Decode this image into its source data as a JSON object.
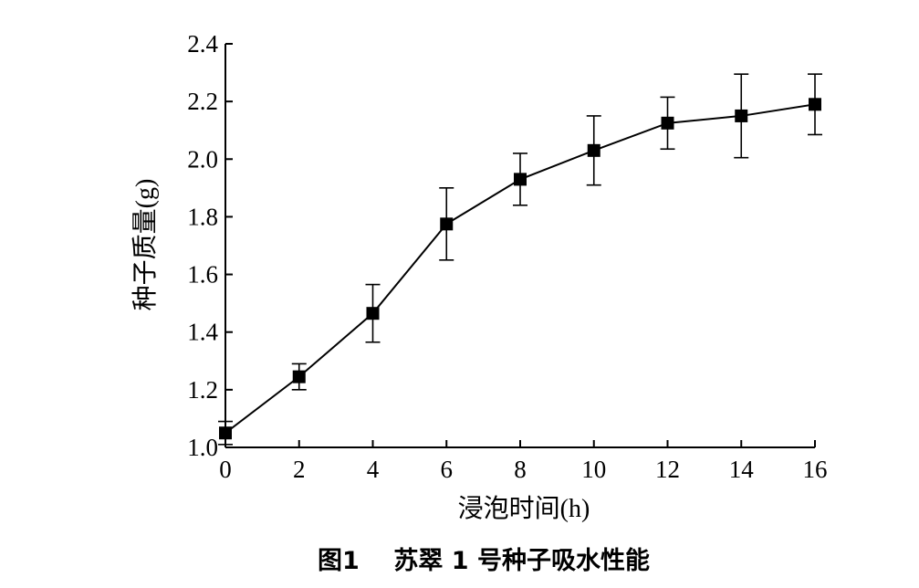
{
  "chart_data": {
    "type": "line",
    "caption": "图1    苏翠 1 号种子吸水性能",
    "xlabel": "浸泡时间(h)",
    "ylabel": "种子质量(g)",
    "xlim": [
      0,
      16
    ],
    "ylim": [
      1.0,
      2.4
    ],
    "xticks": [
      0,
      2,
      4,
      6,
      8,
      10,
      12,
      14,
      16
    ],
    "yticks": [
      1.0,
      1.2,
      1.4,
      1.6,
      1.8,
      2.0,
      2.2,
      2.4
    ],
    "grid": false,
    "marker": "square",
    "color": "#000000",
    "series": [
      {
        "x": [
          0,
          2,
          4,
          6,
          8,
          10,
          12,
          14,
          16
        ],
        "y": [
          1.05,
          1.245,
          1.465,
          1.775,
          1.93,
          2.03,
          2.125,
          2.15,
          2.19
        ],
        "error": [
          0.04,
          0.045,
          0.1,
          0.125,
          0.09,
          0.12,
          0.09,
          0.145,
          0.105
        ]
      }
    ]
  }
}
